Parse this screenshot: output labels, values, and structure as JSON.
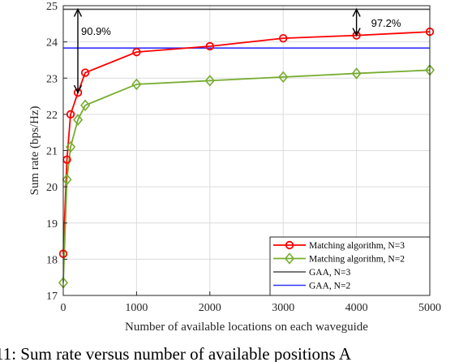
{
  "chart_data": {
    "type": "line",
    "title": "",
    "xlabel": "Number of available locations on each waveguide",
    "ylabel": "Sum rate (bps/Hz)",
    "xlim": [
      0,
      5000
    ],
    "ylim": [
      17,
      25
    ],
    "xticks": [
      0,
      1000,
      2000,
      3000,
      4000,
      5000
    ],
    "yticks": [
      17,
      18,
      19,
      20,
      21,
      22,
      23,
      24,
      25
    ],
    "grid": true,
    "legend_position": "bottom-right",
    "series": [
      {
        "name": "Matching algorithm, N=3",
        "color": "#ff0000",
        "marker": "circle",
        "x": [
          0,
          50,
          100,
          200,
          300,
          1000,
          2000,
          3000,
          4000,
          5000
        ],
        "y": [
          18.15,
          20.75,
          22.0,
          22.6,
          23.15,
          23.72,
          23.88,
          24.1,
          24.18,
          24.28
        ]
      },
      {
        "name": "Matching algorithm, N=2",
        "color": "#77ac30",
        "marker": "diamond",
        "x": [
          0,
          50,
          100,
          200,
          300,
          1000,
          2000,
          3000,
          4000,
          5000
        ],
        "y": [
          17.35,
          20.2,
          21.1,
          21.85,
          22.25,
          22.83,
          22.93,
          23.03,
          23.13,
          23.22
        ]
      },
      {
        "name": "GAA, N=3",
        "color": "#4d4d4d",
        "marker": "none",
        "x": [
          0,
          5000
        ],
        "y": [
          24.9,
          24.9
        ]
      },
      {
        "name": "GAA, N=2",
        "color": "#3333ff",
        "marker": "none",
        "x": [
          0,
          5000
        ],
        "y": [
          23.83,
          23.83
        ]
      }
    ],
    "annotations": [
      {
        "text": "90.9%",
        "x": 200,
        "y_from": 24.9,
        "y_to": 22.6
      },
      {
        "text": "97.2%",
        "x": 4000,
        "y_from": 24.9,
        "y_to": 24.18
      }
    ]
  },
  "caption": "11: Sum rate versus number of available positions A"
}
